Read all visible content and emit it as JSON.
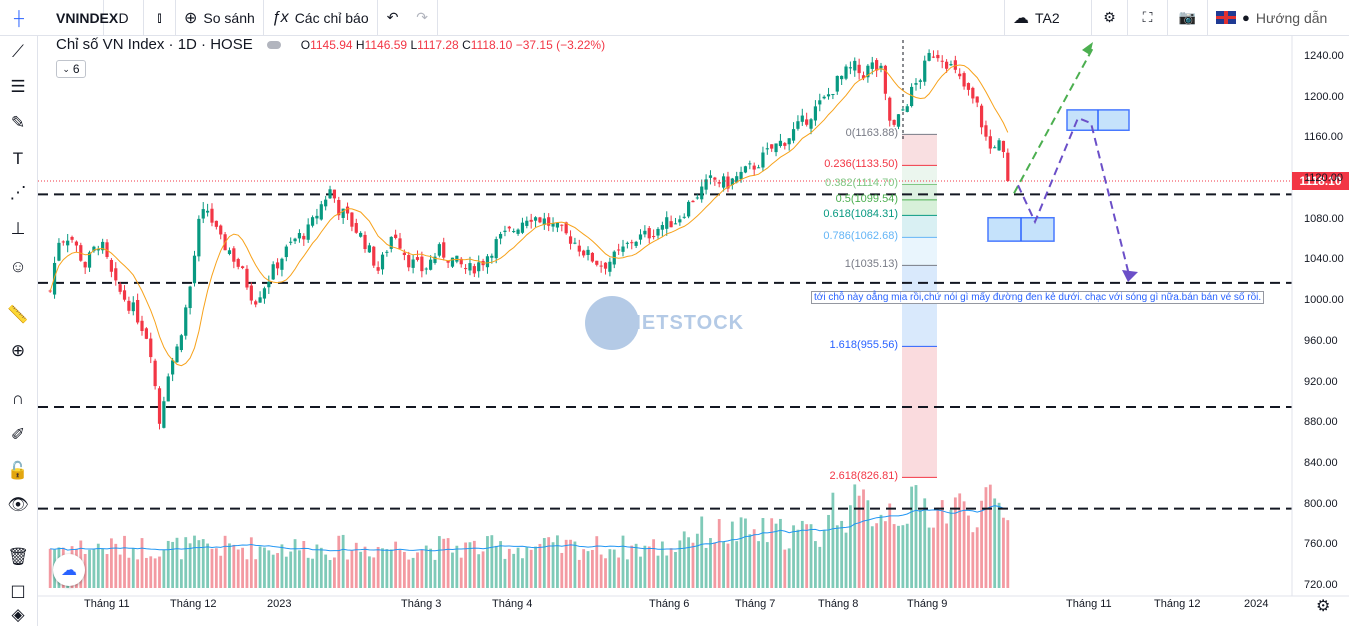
{
  "toolbar": {
    "symbol": "VNINDEX",
    "interval": "D",
    "compare_label": "So sánh",
    "indicators_label": "Các chỉ báo",
    "layout_name": "TA2",
    "help_label": "Hướng dẫn"
  },
  "legend": {
    "title": "Chỉ số VN Index · 1D · HOSE",
    "open_label": "O",
    "open": "1145.94",
    "high_label": "H",
    "high": "1146.59",
    "low_label": "L",
    "low": "1117.28",
    "close_label": "C",
    "close": "1118.10",
    "change": "−37.15 (−3.22%)",
    "indicator_count": "6"
  },
  "annotation_note": "tới chỗ này oẳng mịa rồi,chứ nói gì mấy đường đen kẻ dưới. chạc với sóng gì nữa.bán bán vé số rồi.",
  "watermark": "VIETSTOCK",
  "colors": {
    "up": "#089981",
    "down": "#f23645",
    "ma": "#f7a21b",
    "vol_ma": "#2196f3",
    "drawing": "#6b4fc8",
    "up_arrow": "#4caf50"
  },
  "chart_data": {
    "type": "candlestick",
    "title": "Chỉ số VN Index · 1D · HOSE",
    "last_price": "1118.10",
    "y_ticks": [
      "1240.00",
      "1200.00",
      "1160.00",
      "1120.00",
      "1080.00",
      "1040.00",
      "1000.00",
      "960.00",
      "920.00",
      "880.00",
      "840.00",
      "800.00",
      "760.00",
      "720.00"
    ],
    "x_ticks": [
      "Tháng 11",
      "Tháng 12",
      "2023",
      "Tháng 3",
      "Tháng 4",
      "Tháng 6",
      "Tháng 7",
      "Tháng 8",
      "Tháng 9",
      "Tháng 11",
      "Tháng 12",
      "2024"
    ],
    "ylim": [
      705,
      1255
    ],
    "close_path": [
      [
        0,
        1010
      ],
      [
        8,
        1060
      ],
      [
        20,
        1065
      ],
      [
        35,
        1035
      ],
      [
        50,
        1060
      ],
      [
        65,
        1015
      ],
      [
        85,
        990
      ],
      [
        100,
        960
      ],
      [
        110,
        880
      ],
      [
        118,
        930
      ],
      [
        128,
        955
      ],
      [
        140,
        1010
      ],
      [
        150,
        1080
      ],
      [
        158,
        1090
      ],
      [
        170,
        1060
      ],
      [
        180,
        1050
      ],
      [
        192,
        1030
      ],
      [
        205,
        1000
      ],
      [
        218,
        1020
      ],
      [
        230,
        1040
      ],
      [
        245,
        1060
      ],
      [
        260,
        1070
      ],
      [
        275,
        1100
      ],
      [
        282,
        1110
      ],
      [
        290,
        1090
      ],
      [
        300,
        1080
      ],
      [
        315,
        1060
      ],
      [
        330,
        1030
      ],
      [
        345,
        1070
      ],
      [
        360,
        1040
      ],
      [
        375,
        1030
      ],
      [
        390,
        1050
      ],
      [
        405,
        1040
      ],
      [
        420,
        1030
      ],
      [
        435,
        1040
      ],
      [
        450,
        1060
      ],
      [
        465,
        1070
      ],
      [
        480,
        1085
      ],
      [
        495,
        1080
      ],
      [
        510,
        1070
      ],
      [
        525,
        1060
      ],
      [
        540,
        1045
      ],
      [
        555,
        1035
      ],
      [
        570,
        1045
      ],
      [
        585,
        1060
      ],
      [
        600,
        1065
      ],
      [
        615,
        1075
      ],
      [
        630,
        1080
      ],
      [
        645,
        1100
      ],
      [
        655,
        1110
      ],
      [
        665,
        1120
      ],
      [
        680,
        1115
      ],
      [
        695,
        1125
      ],
      [
        710,
        1135
      ],
      [
        725,
        1150
      ],
      [
        740,
        1160
      ],
      [
        755,
        1175
      ],
      [
        770,
        1190
      ],
      [
        780,
        1200
      ],
      [
        790,
        1215
      ],
      [
        800,
        1225
      ],
      [
        808,
        1230
      ],
      [
        815,
        1222
      ],
      [
        825,
        1232
      ],
      [
        835,
        1225
      ],
      [
        842,
        1180
      ],
      [
        848,
        1170
      ],
      [
        855,
        1185
      ],
      [
        865,
        1205
      ],
      [
        875,
        1222
      ],
      [
        885,
        1245
      ],
      [
        895,
        1242
      ],
      [
        905,
        1230
      ],
      [
        915,
        1215
      ],
      [
        925,
        1200
      ],
      [
        932,
        1190
      ],
      [
        938,
        1165
      ],
      [
        945,
        1148
      ],
      [
        950,
        1158
      ],
      [
        956,
        1150
      ],
      [
        962,
        1118
      ]
    ],
    "volume_level": "higher in Aug–Sep",
    "fibonacci": [
      {
        "level": "0(1163.88)",
        "value": 1163.88,
        "color": "#787b86"
      },
      {
        "level": "0.236(1133.50)",
        "value": 1133.5,
        "color": "#f23645"
      },
      {
        "level": "0.382(1114.70)",
        "value": 1114.7,
        "color": "#81c784"
      },
      {
        "level": "0.5(1099.54)",
        "value": 1099.54,
        "color": "#4caf50"
      },
      {
        "level": "0.618(1084.31)",
        "value": 1084.31,
        "color": "#089981"
      },
      {
        "level": "0.786(1062.68)",
        "value": 1062.68,
        "color": "#64b5f6"
      },
      {
        "level": "1(1035.13)",
        "value": 1035.13,
        "color": "#787b86"
      },
      {
        "level": "1.618(955.56)",
        "value": 955.56,
        "color": "#2962ff"
      },
      {
        "level": "2.618(826.81)",
        "value": 826.81,
        "color": "#f23645"
      }
    ],
    "horizontal_lines": [
      1105,
      1018,
      896,
      796
    ]
  }
}
